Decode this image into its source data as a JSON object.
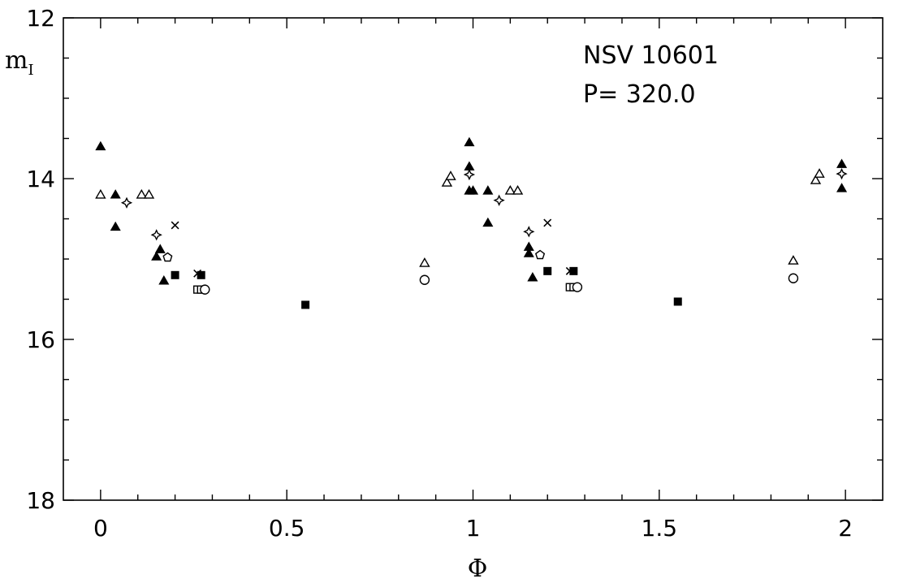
{
  "chart_data": {
    "type": "scatter",
    "xlabel": "Φ",
    "ylabel": "m",
    "ylabel_sub": "I",
    "xlim": [
      -0.1,
      2.1
    ],
    "ylim": [
      18,
      12
    ],
    "y_inverted": true,
    "x_ticks": [
      {
        "value": 0,
        "label": "0"
      },
      {
        "value": 0.5,
        "label": "0.5"
      },
      {
        "value": 1,
        "label": "1"
      },
      {
        "value": 1.5,
        "label": "1.5"
      },
      {
        "value": 2,
        "label": "2"
      }
    ],
    "x_minor_ticks": [
      0.1,
      0.2,
      0.3,
      0.4,
      0.6,
      0.7,
      0.8,
      0.9,
      1.1,
      1.2,
      1.3,
      1.4,
      1.6,
      1.7,
      1.8,
      1.9
    ],
    "y_ticks": [
      {
        "value": 12,
        "label": "12"
      },
      {
        "value": 14,
        "label": "14"
      },
      {
        "value": 16,
        "label": "16"
      },
      {
        "value": 18,
        "label": "18"
      }
    ],
    "y_minor_ticks": [
      12.5,
      13,
      13.5,
      14.5,
      15,
      15.5,
      16.5,
      17,
      17.5
    ],
    "annotations": [
      "NSV 10601",
      "P= 320.0"
    ],
    "grid": false,
    "series": [
      {
        "marker": "filled-triangle",
        "points": [
          {
            "x": 0.0,
            "y": 13.6
          },
          {
            "x": 0.04,
            "y": 14.2
          },
          {
            "x": 0.04,
            "y": 14.6
          },
          {
            "x": 0.15,
            "y": 14.97
          },
          {
            "x": 0.16,
            "y": 14.88
          },
          {
            "x": 0.17,
            "y": 15.27
          },
          {
            "x": 0.99,
            "y": 13.55
          },
          {
            "x": 0.99,
            "y": 13.85
          },
          {
            "x": 0.99,
            "y": 14.15
          },
          {
            "x": 1.0,
            "y": 14.15
          },
          {
            "x": 1.04,
            "y": 14.15
          },
          {
            "x": 1.04,
            "y": 14.55
          },
          {
            "x": 1.15,
            "y": 14.93
          },
          {
            "x": 1.15,
            "y": 14.85
          },
          {
            "x": 1.16,
            "y": 15.23
          },
          {
            "x": 1.99,
            "y": 13.82
          },
          {
            "x": 1.99,
            "y": 14.12
          }
        ]
      },
      {
        "marker": "open-triangle",
        "points": [
          {
            "x": 0.0,
            "y": 14.2
          },
          {
            "x": 0.11,
            "y": 14.2
          },
          {
            "x": 0.13,
            "y": 14.2
          },
          {
            "x": 0.87,
            "y": 15.05
          },
          {
            "x": 0.93,
            "y": 14.05
          },
          {
            "x": 0.94,
            "y": 13.97
          },
          {
            "x": 1.1,
            "y": 14.15
          },
          {
            "x": 1.12,
            "y": 14.15
          },
          {
            "x": 1.86,
            "y": 15.02
          },
          {
            "x": 1.92,
            "y": 14.02
          },
          {
            "x": 1.93,
            "y": 13.94
          }
        ]
      },
      {
        "marker": "open-star",
        "points": [
          {
            "x": 0.07,
            "y": 14.3
          },
          {
            "x": 0.15,
            "y": 14.7
          },
          {
            "x": 0.99,
            "y": 13.95
          },
          {
            "x": 1.07,
            "y": 14.27
          },
          {
            "x": 1.15,
            "y": 14.66
          },
          {
            "x": 1.99,
            "y": 13.94
          }
        ]
      },
      {
        "marker": "cross",
        "points": [
          {
            "x": 0.2,
            "y": 14.58
          },
          {
            "x": 0.26,
            "y": 15.18
          },
          {
            "x": 1.2,
            "y": 14.55
          },
          {
            "x": 1.26,
            "y": 15.15
          }
        ]
      },
      {
        "marker": "open-pentagon",
        "points": [
          {
            "x": 0.18,
            "y": 14.98
          },
          {
            "x": 1.18,
            "y": 14.95
          }
        ]
      },
      {
        "marker": "filled-square",
        "points": [
          {
            "x": 0.2,
            "y": 15.2
          },
          {
            "x": 0.27,
            "y": 15.2
          },
          {
            "x": 0.55,
            "y": 15.57
          },
          {
            "x": 1.2,
            "y": 15.15
          },
          {
            "x": 1.27,
            "y": 15.15
          },
          {
            "x": 1.55,
            "y": 15.53
          }
        ]
      },
      {
        "marker": "open-square",
        "points": [
          {
            "x": 0.26,
            "y": 15.38
          },
          {
            "x": 0.27,
            "y": 15.38
          },
          {
            "x": 1.26,
            "y": 15.35
          },
          {
            "x": 1.27,
            "y": 15.35
          }
        ]
      },
      {
        "marker": "open-circle",
        "points": [
          {
            "x": 0.28,
            "y": 15.38
          },
          {
            "x": 0.87,
            "y": 15.26
          },
          {
            "x": 1.28,
            "y": 15.35
          },
          {
            "x": 1.86,
            "y": 15.24
          }
        ]
      }
    ]
  }
}
